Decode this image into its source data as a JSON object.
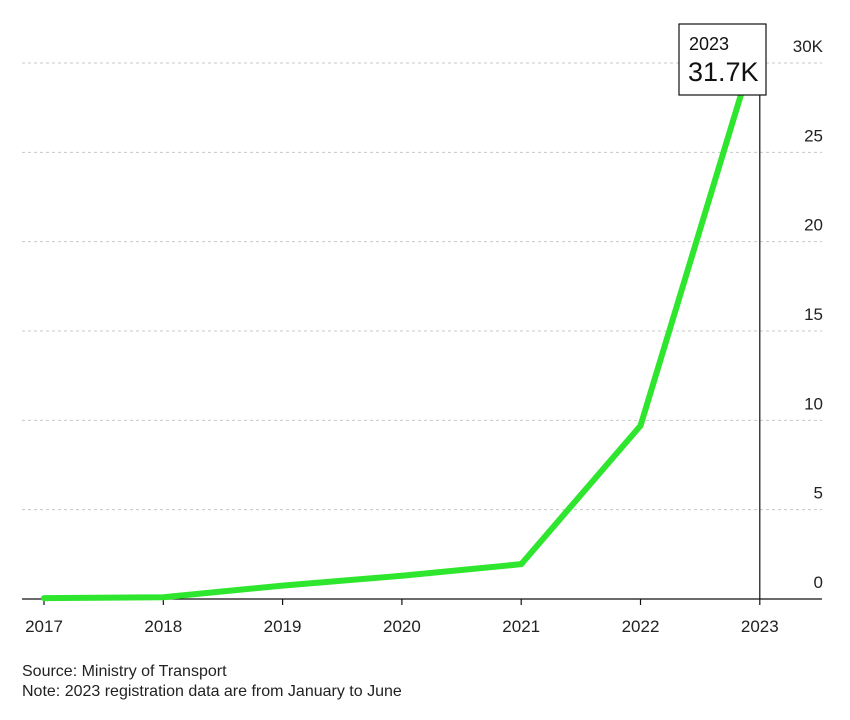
{
  "chart_data": {
    "type": "line",
    "x": [
      "2017",
      "2018",
      "2019",
      "2020",
      "2021",
      "2022",
      "2023"
    ],
    "series": [
      {
        "values": [
          0.05,
          0.1,
          0.75,
          1.3,
          1.95,
          9.7,
          31.7
        ],
        "color": "#2ee62e"
      }
    ],
    "ylim": [
      0,
      30
    ],
    "yticks": [
      0,
      5,
      10,
      15,
      20,
      25,
      30
    ],
    "ytick_labels": [
      "0",
      "5",
      "10",
      "15",
      "20",
      "25",
      "30K"
    ],
    "grid": true,
    "callout": {
      "year": "2023",
      "value": "31.7K"
    }
  },
  "footer": {
    "source": "Source: Ministry of Transport",
    "note": "Note: 2023 registration data are from January to June"
  }
}
